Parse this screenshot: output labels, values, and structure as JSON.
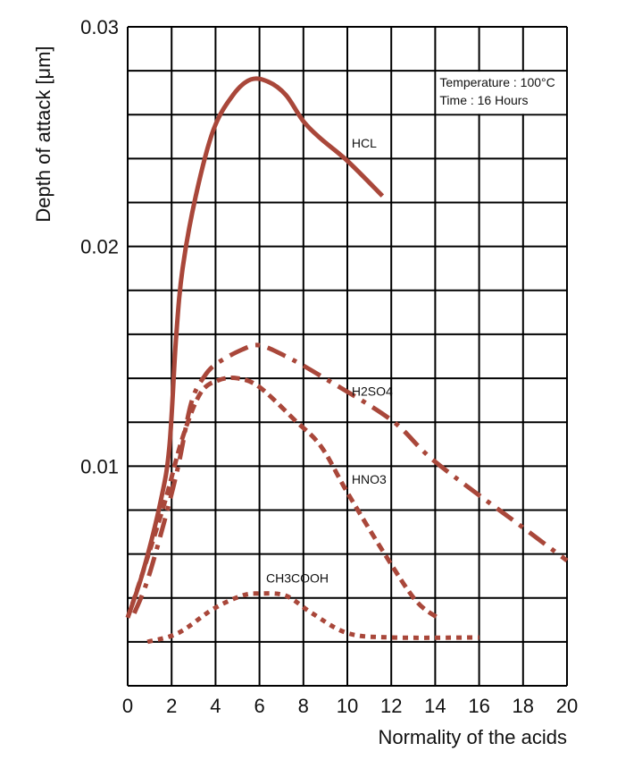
{
  "chart_data": {
    "type": "line",
    "title": "",
    "xlabel": "Normality of the acids",
    "ylabel": "Depth of attack [μm]",
    "xlim": [
      0,
      20
    ],
    "ylim": [
      0,
      0.03
    ],
    "x_ticks": [
      "0",
      "2",
      "4",
      "6",
      "8",
      "10",
      "12",
      "14",
      "16",
      "18",
      "20"
    ],
    "y_ticks": [
      {
        "value": 0.01,
        "label": "0.01"
      },
      {
        "value": 0.02,
        "label": "0.02"
      },
      {
        "value": 0.03,
        "label": "0.03"
      }
    ],
    "grid": true,
    "grid_x_step": 2,
    "grid_y_step": 0.002,
    "color": "#a9473a",
    "annotation": [
      "Temperature : 100°C",
      "Time : 16 Hours"
    ],
    "series": [
      {
        "name": "HCL",
        "style": "solid",
        "label_at": [
          10.2,
          0.0245
        ],
        "points": [
          [
            0,
            0.0031
          ],
          [
            0.7,
            0.0052
          ],
          [
            1.5,
            0.0084
          ],
          [
            1.9,
            0.0109
          ],
          [
            2.2,
            0.0158
          ],
          [
            2.5,
            0.019
          ],
          [
            3.1,
            0.0223
          ],
          [
            3.9,
            0.0253
          ],
          [
            4.8,
            0.0269
          ],
          [
            5.6,
            0.0276
          ],
          [
            6.4,
            0.0275
          ],
          [
            7.2,
            0.0269
          ],
          [
            8.0,
            0.0257
          ],
          [
            8.8,
            0.0249
          ],
          [
            10,
            0.0239
          ],
          [
            11.6,
            0.0223
          ]
        ]
      },
      {
        "name": "H2SO4",
        "style": "dashdot",
        "label_at": [
          10.2,
          0.0132
        ],
        "points": [
          [
            0.3,
            0.0033
          ],
          [
            0.9,
            0.0048
          ],
          [
            1.7,
            0.0076
          ],
          [
            2.3,
            0.01
          ],
          [
            2.9,
            0.0129
          ],
          [
            3.5,
            0.0141
          ],
          [
            4.1,
            0.0147
          ],
          [
            5.2,
            0.0153
          ],
          [
            6.0,
            0.0155
          ],
          [
            7.2,
            0.015
          ],
          [
            8.8,
            0.0141
          ],
          [
            12,
            0.0121
          ],
          [
            14,
            0.0102
          ],
          [
            18,
            0.0072
          ],
          [
            20,
            0.0057
          ]
        ]
      },
      {
        "name": "HNO3",
        "style": "dash",
        "label_at": [
          10.2,
          0.0092
        ],
        "points": [
          [
            0,
            0.0031
          ],
          [
            0.7,
            0.0052
          ],
          [
            1.7,
            0.0084
          ],
          [
            2.5,
            0.0113
          ],
          [
            3.3,
            0.0133
          ],
          [
            4.1,
            0.0139
          ],
          [
            5.0,
            0.014
          ],
          [
            6.0,
            0.0136
          ],
          [
            7.6,
            0.0121
          ],
          [
            8.8,
            0.0109
          ],
          [
            10,
            0.0088
          ],
          [
            11.7,
            0.006
          ],
          [
            13.1,
            0.0039
          ],
          [
            14.1,
            0.0031
          ]
        ]
      },
      {
        "name": "CH3COOH",
        "style": "dot",
        "label_at": [
          6.3,
          0.0047
        ],
        "points": [
          [
            0.9,
            0.002
          ],
          [
            2.3,
            0.0024
          ],
          [
            3.9,
            0.0035
          ],
          [
            5.2,
            0.0041
          ],
          [
            6.0,
            0.0042
          ],
          [
            7.2,
            0.0041
          ],
          [
            8.4,
            0.0033
          ],
          [
            10,
            0.0024
          ],
          [
            12,
            0.0022
          ],
          [
            16,
            0.0022
          ]
        ]
      }
    ]
  }
}
